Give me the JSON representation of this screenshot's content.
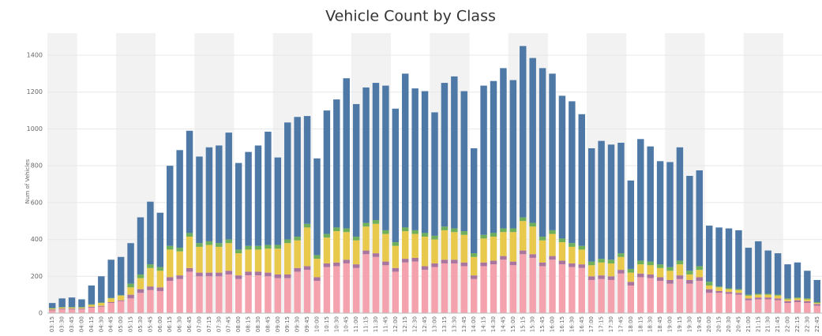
{
  "chart_data": {
    "type": "stacked_bar",
    "title": "Vehicle Count by Class",
    "y_label": "Num of Vehicles",
    "categories": [
      "03:15",
      "03:30",
      "03:45",
      "04:00",
      "04:15",
      "04:30",
      "04:45",
      "05:00",
      "05:15",
      "05:30",
      "05:45",
      "06:00",
      "06:15",
      "06:30",
      "06:45",
      "07:00",
      "07:15",
      "07:30",
      "07:45",
      "08:00",
      "08:15",
      "08:30",
      "08:45",
      "09:00",
      "09:15",
      "09:30",
      "09:45",
      "10:00",
      "10:15",
      "10:30",
      "10:45",
      "11:00",
      "11:15",
      "11:30",
      "11:45",
      "12:00",
      "12:15",
      "12:30",
      "12:45",
      "13:00",
      "13:15",
      "13:30",
      "13:45",
      "14:00",
      "14:15",
      "14:30",
      "14:45",
      "15:00",
      "15:15",
      "15:30",
      "15:45",
      "16:00",
      "16:15",
      "16:30",
      "16:45",
      "17:00",
      "17:15",
      "17:30",
      "17:45",
      "18:00",
      "18:15",
      "18:30",
      "18:45",
      "19:00",
      "19:15",
      "19:30",
      "19:45",
      "20:00",
      "20:15",
      "20:30",
      "20:45",
      "21:00",
      "21:15",
      "21:30",
      "21:45",
      "22:00",
      "22:15",
      "22:30",
      "22:45"
    ],
    "series": [
      {
        "color": "#f4a3ae",
        "values": [
          15,
          20,
          20,
          20,
          30,
          35,
          55,
          65,
          80,
          110,
          125,
          120,
          175,
          185,
          225,
          200,
          200,
          200,
          210,
          185,
          205,
          205,
          200,
          190,
          190,
          225,
          235,
          175,
          250,
          255,
          270,
          245,
          320,
          305,
          260,
          225,
          275,
          280,
          235,
          250,
          270,
          270,
          255,
          185,
          255,
          265,
          290,
          260,
          320,
          300,
          255,
          290,
          265,
          250,
          245,
          180,
          185,
          180,
          215,
          150,
          195,
          190,
          175,
          160,
          185,
          160,
          175,
          110,
          110,
          105,
          100,
          70,
          75,
          75,
          70,
          55,
          60,
          55,
          40
        ]
      },
      {
        "color": "#a9759f",
        "values": [
          5,
          5,
          5,
          5,
          5,
          5,
          5,
          5,
          20,
          20,
          20,
          20,
          20,
          20,
          20,
          20,
          20,
          20,
          20,
          20,
          20,
          20,
          20,
          20,
          20,
          20,
          20,
          20,
          20,
          20,
          20,
          20,
          20,
          20,
          20,
          20,
          20,
          20,
          20,
          20,
          20,
          20,
          20,
          20,
          20,
          20,
          20,
          20,
          20,
          20,
          20,
          20,
          20,
          20,
          20,
          20,
          20,
          20,
          20,
          20,
          20,
          20,
          20,
          20,
          20,
          20,
          20,
          20,
          10,
          10,
          10,
          10,
          10,
          10,
          10,
          10,
          10,
          10,
          10
        ]
      },
      {
        "color": "#e9c94c",
        "values": [
          5,
          5,
          5,
          5,
          10,
          15,
          20,
          25,
          40,
          60,
          100,
          90,
          150,
          130,
          170,
          140,
          150,
          140,
          150,
          120,
          120,
          120,
          130,
          140,
          170,
          150,
          210,
          100,
          140,
          170,
          150,
          130,
          130,
          160,
          150,
          120,
          150,
          130,
          160,
          130,
          160,
          150,
          150,
          100,
          130,
          130,
          130,
          160,
          160,
          150,
          120,
          120,
          100,
          90,
          80,
          60,
          70,
          70,
          70,
          50,
          50,
          50,
          50,
          50,
          60,
          30,
          40,
          20,
          20,
          15,
          15,
          15,
          15,
          15,
          15,
          10,
          10,
          10,
          5
        ]
      },
      {
        "color": "#6fae5a",
        "values": [
          3,
          3,
          3,
          3,
          3,
          3,
          3,
          3,
          20,
          20,
          20,
          20,
          20,
          20,
          20,
          20,
          20,
          20,
          20,
          20,
          20,
          20,
          20,
          20,
          20,
          20,
          20,
          20,
          20,
          20,
          20,
          20,
          20,
          20,
          20,
          20,
          20,
          20,
          20,
          20,
          20,
          20,
          20,
          20,
          20,
          20,
          20,
          20,
          20,
          20,
          20,
          20,
          20,
          20,
          20,
          20,
          20,
          20,
          20,
          20,
          20,
          20,
          20,
          20,
          20,
          20,
          20,
          20,
          5,
          5,
          5,
          5,
          5,
          5,
          5,
          5,
          5,
          5,
          5
        ]
      },
      {
        "color": "#4e79a7",
        "values": [
          27,
          47,
          52,
          42,
          102,
          142,
          207,
          207,
          220,
          310,
          340,
          295,
          435,
          530,
          555,
          470,
          510,
          530,
          580,
          470,
          510,
          545,
          615,
          475,
          635,
          650,
          585,
          525,
          670,
          695,
          815,
          720,
          735,
          745,
          785,
          725,
          835,
          770,
          770,
          670,
          780,
          825,
          760,
          570,
          810,
          825,
          870,
          805,
          930,
          895,
          915,
          850,
          775,
          770,
          715,
          615,
          640,
          625,
          600,
          480,
          660,
          625,
          560,
          570,
          615,
          515,
          520,
          305,
          320,
          325,
          320,
          255,
          285,
          235,
          225,
          185,
          190,
          150,
          120
        ]
      }
    ],
    "ylim": [
      0,
      1520
    ],
    "yticks": [
      0,
      200,
      400,
      600,
      800,
      1000,
      1200,
      1400
    ],
    "grid": true
  }
}
